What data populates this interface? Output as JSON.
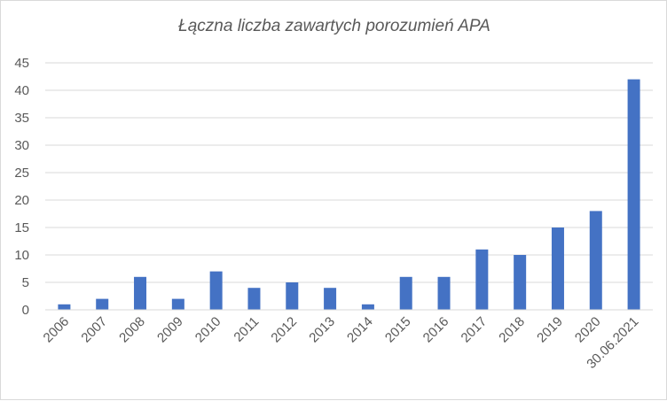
{
  "chart_data": {
    "type": "bar",
    "title": "Łączna liczba zawartych porozumień APA",
    "xlabel": "",
    "ylabel": "",
    "categories": [
      "2006",
      "2007",
      "2008",
      "2009",
      "2010",
      "2011",
      "2012",
      "2013",
      "2014",
      "2015",
      "2016",
      "2017",
      "2018",
      "2019",
      "2020",
      "30.06.2021"
    ],
    "values": [
      1,
      2,
      6,
      2,
      7,
      4,
      5,
      4,
      1,
      6,
      6,
      11,
      10,
      15,
      18,
      42
    ],
    "ylim": [
      0,
      45
    ],
    "yticks": [
      0,
      5,
      10,
      15,
      20,
      25,
      30,
      35,
      40,
      45
    ],
    "grid": true,
    "legend": "none",
    "bar_color": "#4472c4",
    "grid_color": "#d9d9d9",
    "text_color": "#595959"
  }
}
